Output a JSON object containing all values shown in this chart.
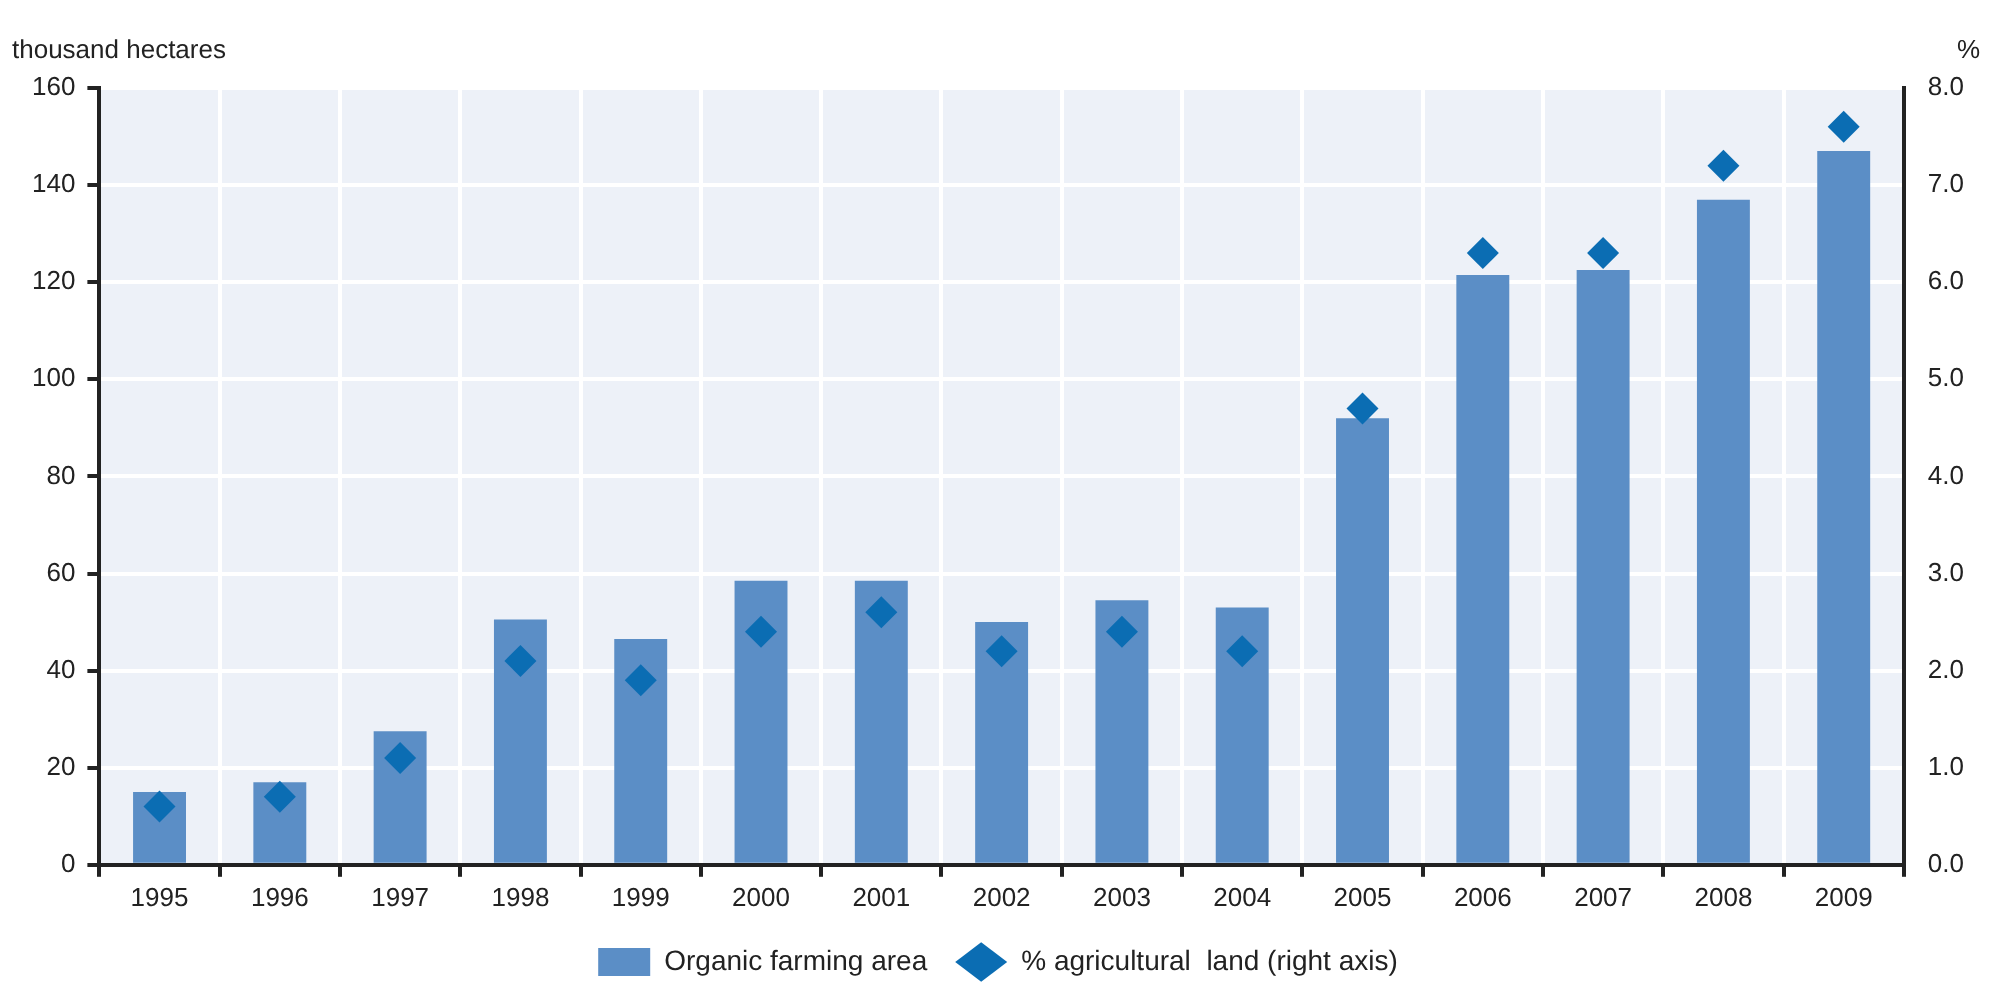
{
  "chart_data": {
    "type": "bar",
    "ylabel": "thousand hectares",
    "y2label": "%",
    "categories": [
      "1995",
      "1996",
      "1997",
      "1998",
      "1999",
      "2000",
      "2001",
      "2002",
      "2003",
      "2004",
      "2005",
      "2006",
      "2007",
      "2008",
      "2009"
    ],
    "series": [
      {
        "name": "Organic farming area",
        "color": "#5b8ec6",
        "values": [
          15,
          17,
          27.5,
          50.5,
          46.5,
          58.5,
          58.5,
          50,
          54.5,
          53,
          92,
          121.5,
          122.5,
          137,
          147
        ]
      },
      {
        "name": "% agricultural  land (right axis)",
        "type": "scatter",
        "axis": "y2",
        "marker": "diamond",
        "color": "#0b6db3",
        "values": [
          0.6,
          0.7,
          1.1,
          2.1,
          1.9,
          2.4,
          2.6,
          2.2,
          2.4,
          2.2,
          4.7,
          6.3,
          6.3,
          7.2,
          7.6
        ]
      }
    ],
    "ylim": [
      0,
      160
    ],
    "yticks": [
      0,
      20,
      40,
      60,
      80,
      100,
      120,
      140,
      160
    ],
    "y2lim": [
      0,
      8
    ],
    "y2ticks": [
      {
        "value": 0,
        "label": "0.0"
      },
      {
        "value": 1,
        "label": "1.0"
      },
      {
        "value": 2,
        "label": "2.0"
      },
      {
        "value": 3,
        "label": "3.0"
      },
      {
        "value": 4,
        "label": "4.0"
      },
      {
        "value": 5,
        "label": "5.0"
      },
      {
        "value": 6,
        "label": "6.0"
      },
      {
        "value": 7,
        "label": "7.0"
      },
      {
        "value": 8,
        "label": "8.0"
      }
    ],
    "grid": true,
    "legend": "bottom"
  }
}
